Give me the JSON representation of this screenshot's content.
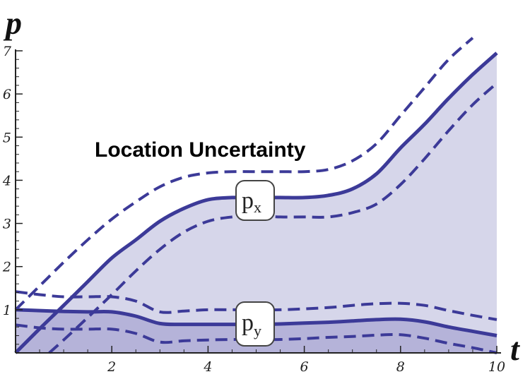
{
  "chart_data": {
    "type": "area",
    "x_label": "t",
    "y_label": "p",
    "xlim": [
      0,
      10
    ],
    "ylim": [
      0,
      7
    ],
    "x_ticks": [
      2,
      4,
      6,
      8,
      10
    ],
    "y_ticks": [
      1,
      2,
      3,
      4,
      5,
      6,
      7
    ],
    "grid": false,
    "annotation": "Location Uncertainty",
    "series": [
      {
        "name": "px",
        "label_main": "p",
        "label_sub": "x",
        "style": "solid",
        "x": [
          0,
          0.5,
          1,
          1.5,
          2,
          2.5,
          3,
          3.5,
          4,
          4.5,
          5,
          5.5,
          6,
          6.5,
          7,
          7.5,
          8,
          8.5,
          9,
          9.5,
          10
        ],
        "y": [
          0,
          0.56,
          1.1,
          1.65,
          2.2,
          2.62,
          3.05,
          3.35,
          3.55,
          3.6,
          3.6,
          3.6,
          3.6,
          3.65,
          3.8,
          4.15,
          4.75,
          5.3,
          5.9,
          6.45,
          6.95
        ]
      },
      {
        "name": "px upper bound",
        "style": "dashed",
        "x": [
          0,
          0.5,
          1,
          1.5,
          2,
          2.5,
          3,
          3.5,
          4,
          4.5,
          5,
          5.5,
          6,
          6.5,
          7,
          7.5,
          8,
          8.5,
          9,
          9.5
        ],
        "y": [
          1.0,
          1.55,
          2.1,
          2.62,
          3.1,
          3.5,
          3.85,
          4.07,
          4.17,
          4.2,
          4.2,
          4.2,
          4.2,
          4.25,
          4.45,
          4.85,
          5.5,
          6.15,
          6.8,
          7.3
        ]
      },
      {
        "name": "px lower bound",
        "style": "dashed",
        "x": [
          0.7,
          1,
          1.5,
          2,
          2.5,
          3,
          3.5,
          4,
          4.5,
          5,
          5.5,
          6,
          6.5,
          7,
          7.5,
          8,
          8.5,
          9,
          9.5,
          10
        ],
        "y": [
          0,
          0.3,
          0.82,
          1.35,
          1.9,
          2.4,
          2.8,
          3.05,
          3.15,
          3.18,
          3.15,
          3.15,
          3.15,
          3.25,
          3.45,
          3.9,
          4.5,
          5.15,
          5.75,
          6.25
        ]
      },
      {
        "name": "py",
        "label_main": "p",
        "label_sub": "y",
        "style": "solid",
        "x": [
          0,
          0.5,
          1,
          1.5,
          2,
          2.5,
          3,
          3.5,
          4,
          4.5,
          5,
          5.5,
          6,
          6.5,
          7,
          7.5,
          8,
          8.5,
          9,
          9.5,
          10
        ],
        "y": [
          1.0,
          0.98,
          0.96,
          0.95,
          0.95,
          0.85,
          0.68,
          0.66,
          0.66,
          0.66,
          0.66,
          0.67,
          0.69,
          0.71,
          0.74,
          0.77,
          0.78,
          0.72,
          0.6,
          0.5,
          0.4
        ]
      },
      {
        "name": "py upper bound",
        "style": "dashed",
        "x": [
          0,
          0.5,
          1,
          1.5,
          2,
          2.5,
          3,
          3.5,
          4,
          4.5,
          5,
          5.5,
          6,
          6.5,
          7,
          7.5,
          8,
          8.5,
          9,
          9.5,
          10
        ],
        "y": [
          1.42,
          1.35,
          1.3,
          1.3,
          1.3,
          1.2,
          0.95,
          0.97,
          1.0,
          1.0,
          1.0,
          1.0,
          1.02,
          1.05,
          1.1,
          1.14,
          1.15,
          1.1,
          0.98,
          0.87,
          0.77
        ]
      },
      {
        "name": "py lower bound",
        "style": "dashed",
        "x": [
          0,
          0.5,
          1,
          1.5,
          2,
          2.5,
          3,
          3.5,
          4,
          4.5,
          5,
          5.5,
          6,
          6.5,
          7,
          7.5,
          8,
          8.5,
          9,
          9.5,
          10
        ],
        "y": [
          0.65,
          0.58,
          0.55,
          0.55,
          0.55,
          0.45,
          0.25,
          0.28,
          0.3,
          0.31,
          0.31,
          0.31,
          0.33,
          0.36,
          0.38,
          0.41,
          0.42,
          0.34,
          0.22,
          0.12,
          0.0
        ]
      }
    ]
  },
  "colors": {
    "curve": "#3c3a98",
    "fill": "#d2d2e8",
    "fill_dark": "#a9a7d3",
    "axis": "#222222"
  }
}
